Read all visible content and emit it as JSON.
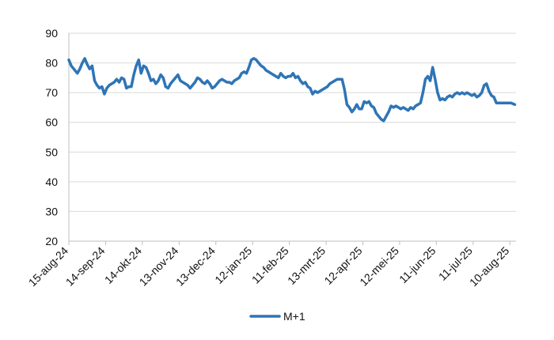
{
  "chart_data": {
    "type": "line",
    "title": "",
    "xlabel": "",
    "ylabel": "",
    "ylim": [
      20,
      90
    ],
    "yticks": [
      "20",
      "30",
      "40",
      "50",
      "60",
      "70",
      "80",
      "90"
    ],
    "x_tick_labels": [
      "15-aug-24",
      "14-sep-24",
      "14-okt-24",
      "13-nov-24",
      "13-dec-24",
      "12-jan-25",
      "11-feb-25",
      "13-mrt-25",
      "12-apr-25",
      "12-mei-25",
      "11-jun-25",
      "11-jul-25",
      "10-aug-25"
    ],
    "x_tick_dates": [
      "2024-08-15",
      "2024-09-14",
      "2024-10-14",
      "2024-11-13",
      "2024-12-13",
      "2025-01-12",
      "2025-02-11",
      "2025-03-13",
      "2025-04-12",
      "2025-05-12",
      "2025-06-11",
      "2025-07-11",
      "2025-08-10"
    ],
    "x_range": [
      "2024-08-15",
      "2025-08-15"
    ],
    "grid": "horizontal",
    "legend": "bottom",
    "colors": {
      "series": "#2e75b6",
      "grid": "#d9d9d9",
      "axis": "#bfbfbf"
    },
    "series": [
      {
        "name": "M+1",
        "points": [
          [
            "2024-08-15",
            81
          ],
          [
            "2024-08-17",
            79
          ],
          [
            "2024-08-20",
            77.5
          ],
          [
            "2024-08-22",
            76.5
          ],
          [
            "2024-08-24",
            78
          ],
          [
            "2024-08-26",
            80
          ],
          [
            "2024-08-28",
            81.5
          ],
          [
            "2024-08-30",
            79.5
          ],
          [
            "2024-09-01",
            78
          ],
          [
            "2024-09-03",
            79
          ],
          [
            "2024-09-05",
            74
          ],
          [
            "2024-09-07",
            72.5
          ],
          [
            "2024-09-09",
            71.5
          ],
          [
            "2024-09-11",
            72
          ],
          [
            "2024-09-13",
            69.5
          ],
          [
            "2024-09-15",
            71.5
          ],
          [
            "2024-09-17",
            72.5
          ],
          [
            "2024-09-19",
            73
          ],
          [
            "2024-09-21",
            73.5
          ],
          [
            "2024-09-23",
            74.5
          ],
          [
            "2024-09-25",
            73.5
          ],
          [
            "2024-09-27",
            75
          ],
          [
            "2024-09-29",
            74.5
          ],
          [
            "2024-10-01",
            71.5
          ],
          [
            "2024-10-03",
            72
          ],
          [
            "2024-10-05",
            72
          ],
          [
            "2024-10-07",
            76
          ],
          [
            "2024-10-09",
            79
          ],
          [
            "2024-10-11",
            81
          ],
          [
            "2024-10-13",
            76.5
          ],
          [
            "2024-10-15",
            79
          ],
          [
            "2024-10-17",
            78.5
          ],
          [
            "2024-10-19",
            76.5
          ],
          [
            "2024-10-21",
            74
          ],
          [
            "2024-10-23",
            74.5
          ],
          [
            "2024-10-25",
            73
          ],
          [
            "2024-10-27",
            74
          ],
          [
            "2024-10-29",
            76
          ],
          [
            "2024-10-31",
            75
          ],
          [
            "2024-11-02",
            72
          ],
          [
            "2024-11-04",
            71.5
          ],
          [
            "2024-11-06",
            73
          ],
          [
            "2024-11-08",
            74
          ],
          [
            "2024-11-10",
            75
          ],
          [
            "2024-11-12",
            76
          ],
          [
            "2024-11-14",
            74
          ],
          [
            "2024-11-16",
            73.5
          ],
          [
            "2024-11-18",
            73
          ],
          [
            "2024-11-20",
            72.5
          ],
          [
            "2024-11-22",
            71.5
          ],
          [
            "2024-11-24",
            72.5
          ],
          [
            "2024-11-26",
            73.5
          ],
          [
            "2024-11-28",
            75
          ],
          [
            "2024-11-30",
            74.5
          ],
          [
            "2024-12-02",
            73.5
          ],
          [
            "2024-12-04",
            73
          ],
          [
            "2024-12-06",
            74
          ],
          [
            "2024-12-08",
            73
          ],
          [
            "2024-12-10",
            71.5
          ],
          [
            "2024-12-12",
            72
          ],
          [
            "2024-12-14",
            73
          ],
          [
            "2024-12-16",
            74
          ],
          [
            "2024-12-18",
            74.5
          ],
          [
            "2024-12-20",
            74
          ],
          [
            "2024-12-22",
            73.5
          ],
          [
            "2024-12-24",
            73.5
          ],
          [
            "2024-12-26",
            73
          ],
          [
            "2024-12-28",
            74
          ],
          [
            "2024-12-30",
            74.5
          ],
          [
            "2025-01-01",
            75
          ],
          [
            "2025-01-03",
            76.5
          ],
          [
            "2025-01-05",
            77
          ],
          [
            "2025-01-07",
            76.5
          ],
          [
            "2025-01-09",
            78.5
          ],
          [
            "2025-01-11",
            81
          ],
          [
            "2025-01-13",
            81.5
          ],
          [
            "2025-01-15",
            81
          ],
          [
            "2025-01-17",
            80
          ],
          [
            "2025-01-19",
            79
          ],
          [
            "2025-01-21",
            78.5
          ],
          [
            "2025-01-23",
            77.5
          ],
          [
            "2025-01-25",
            77
          ],
          [
            "2025-01-27",
            76.5
          ],
          [
            "2025-01-29",
            76
          ],
          [
            "2025-01-31",
            75.5
          ],
          [
            "2025-02-02",
            75
          ],
          [
            "2025-02-04",
            76.5
          ],
          [
            "2025-02-06",
            75.5
          ],
          [
            "2025-02-08",
            75
          ],
          [
            "2025-02-10",
            75.5
          ],
          [
            "2025-02-12",
            75.5
          ],
          [
            "2025-02-14",
            76.5
          ],
          [
            "2025-02-16",
            75
          ],
          [
            "2025-02-18",
            75.5
          ],
          [
            "2025-02-20",
            74
          ],
          [
            "2025-02-22",
            73
          ],
          [
            "2025-02-24",
            73.5
          ],
          [
            "2025-02-26",
            72
          ],
          [
            "2025-02-28",
            71.5
          ],
          [
            "2025-03-02",
            69.5
          ],
          [
            "2025-03-04",
            70.5
          ],
          [
            "2025-03-06",
            70
          ],
          [
            "2025-03-08",
            70.5
          ],
          [
            "2025-03-10",
            71
          ],
          [
            "2025-03-12",
            71.5
          ],
          [
            "2025-03-14",
            72
          ],
          [
            "2025-03-16",
            73
          ],
          [
            "2025-03-18",
            73.5
          ],
          [
            "2025-03-20",
            74
          ],
          [
            "2025-03-22",
            74.5
          ],
          [
            "2025-03-24",
            74.5
          ],
          [
            "2025-03-26",
            74.5
          ],
          [
            "2025-03-28",
            71
          ],
          [
            "2025-03-30",
            66
          ],
          [
            "2025-04-01",
            65
          ],
          [
            "2025-04-03",
            63.5
          ],
          [
            "2025-04-05",
            64.5
          ],
          [
            "2025-04-07",
            66
          ],
          [
            "2025-04-09",
            64.5
          ],
          [
            "2025-04-11",
            64.5
          ],
          [
            "2025-04-13",
            67
          ],
          [
            "2025-04-15",
            66.5
          ],
          [
            "2025-04-17",
            67
          ],
          [
            "2025-04-19",
            65.5
          ],
          [
            "2025-04-21",
            65
          ],
          [
            "2025-04-23",
            63
          ],
          [
            "2025-04-25",
            62
          ],
          [
            "2025-04-27",
            61
          ],
          [
            "2025-04-29",
            60.5
          ],
          [
            "2025-05-01",
            62
          ],
          [
            "2025-05-03",
            63.5
          ],
          [
            "2025-05-05",
            65.5
          ],
          [
            "2025-05-07",
            65
          ],
          [
            "2025-05-09",
            65.5
          ],
          [
            "2025-05-11",
            65
          ],
          [
            "2025-05-13",
            64.5
          ],
          [
            "2025-05-15",
            65
          ],
          [
            "2025-05-17",
            64.5
          ],
          [
            "2025-05-19",
            64
          ],
          [
            "2025-05-21",
            65
          ],
          [
            "2025-05-23",
            64.5
          ],
          [
            "2025-05-25",
            65.5
          ],
          [
            "2025-05-27",
            66
          ],
          [
            "2025-05-29",
            66.5
          ],
          [
            "2025-05-31",
            70
          ],
          [
            "2025-06-02",
            74.5
          ],
          [
            "2025-06-04",
            75.5
          ],
          [
            "2025-06-06",
            74
          ],
          [
            "2025-06-08",
            78.5
          ],
          [
            "2025-06-10",
            74.5
          ],
          [
            "2025-06-12",
            70
          ],
          [
            "2025-06-14",
            67.5
          ],
          [
            "2025-06-16",
            68
          ],
          [
            "2025-06-18",
            67.5
          ],
          [
            "2025-06-20",
            68.5
          ],
          [
            "2025-06-22",
            69
          ],
          [
            "2025-06-24",
            68.5
          ],
          [
            "2025-06-26",
            69.5
          ],
          [
            "2025-06-28",
            70
          ],
          [
            "2025-06-30",
            69.5
          ],
          [
            "2025-07-02",
            70
          ],
          [
            "2025-07-04",
            69.5
          ],
          [
            "2025-07-06",
            70
          ],
          [
            "2025-07-08",
            69.5
          ],
          [
            "2025-07-10",
            69
          ],
          [
            "2025-07-12",
            69.5
          ],
          [
            "2025-07-14",
            68.5
          ],
          [
            "2025-07-16",
            69
          ],
          [
            "2025-07-18",
            70
          ],
          [
            "2025-07-20",
            72.5
          ],
          [
            "2025-07-22",
            73
          ],
          [
            "2025-07-24",
            70.5
          ],
          [
            "2025-07-26",
            69
          ],
          [
            "2025-07-28",
            68.5
          ],
          [
            "2025-07-30",
            66.5
          ],
          [
            "2025-08-01",
            66.5
          ],
          [
            "2025-08-03",
            66.5
          ],
          [
            "2025-08-05",
            66.5
          ],
          [
            "2025-08-08",
            66.5
          ],
          [
            "2025-08-11",
            66.5
          ],
          [
            "2025-08-14",
            66
          ]
        ]
      }
    ]
  }
}
